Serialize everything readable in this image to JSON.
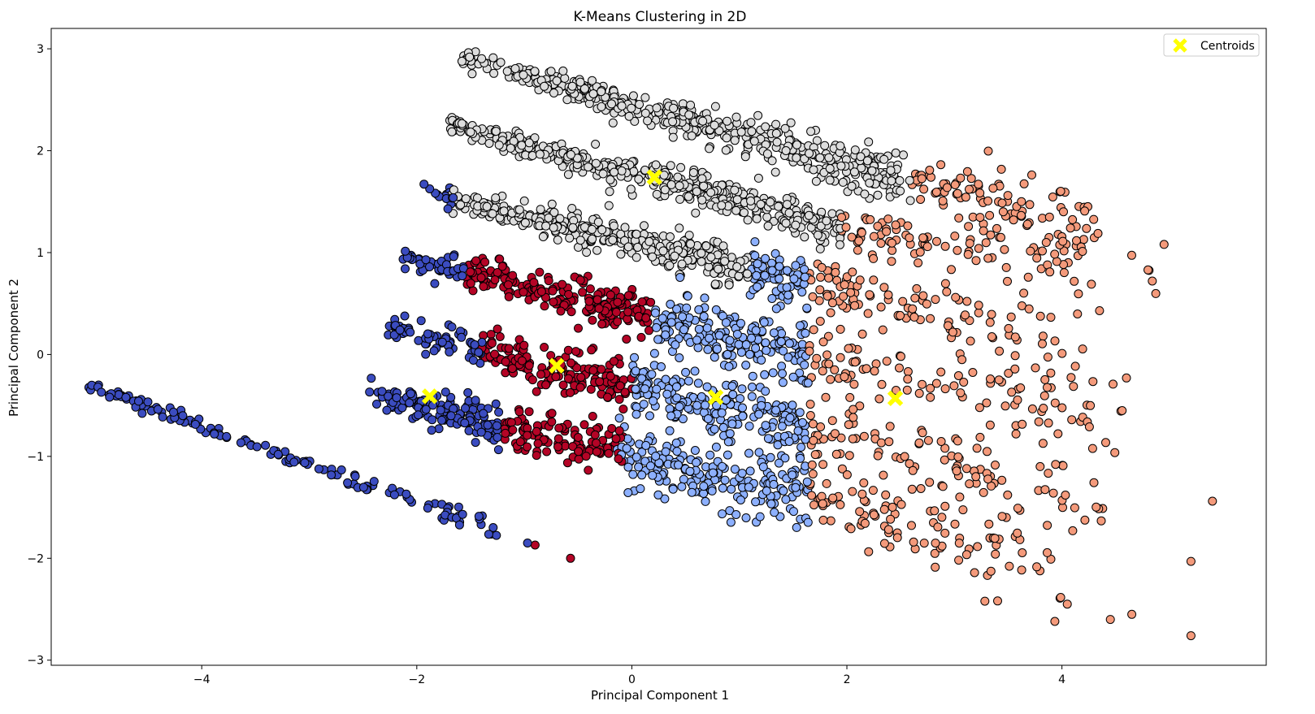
{
  "chart_data": {
    "type": "scatter",
    "title": "K-Means Clustering in 2D",
    "xlabel": "Principal Component 1",
    "ylabel": "Principal Component 2",
    "xlim": [
      -5.4,
      5.9
    ],
    "ylim": [
      -3.05,
      3.2
    ],
    "xticks": [
      {
        "value": -4,
        "label": "−4"
      },
      {
        "value": -2,
        "label": "−2"
      },
      {
        "value": 0,
        "label": "0"
      },
      {
        "value": 2,
        "label": "2"
      },
      {
        "value": 4,
        "label": "4"
      }
    ],
    "yticks": [
      {
        "value": 3,
        "label": "3"
      },
      {
        "value": 2,
        "label": "2"
      },
      {
        "value": 1,
        "label": "1"
      },
      {
        "value": 0,
        "label": "0"
      },
      {
        "value": -1,
        "label": "−1"
      },
      {
        "value": -2,
        "label": "−2"
      },
      {
        "value": -3,
        "label": "−3"
      }
    ],
    "grid": false,
    "legend": {
      "placement": "top-right",
      "entries": [
        {
          "label": "Centroids",
          "marker": "X",
          "color": "#ffff00"
        }
      ]
    },
    "clusters": [
      {
        "id": 0,
        "color": "#3b4cc0"
      },
      {
        "id": 1,
        "color": "#8db0fe"
      },
      {
        "id": 2,
        "color": "#dddddd"
      },
      {
        "id": 3,
        "color": "#f49a7b"
      },
      {
        "id": 4,
        "color": "#b40426"
      }
    ],
    "centroids": [
      {
        "x": -1.88,
        "y": -0.41
      },
      {
        "x": 0.78,
        "y": -0.42
      },
      {
        "x": 0.21,
        "y": 1.74
      },
      {
        "x": 2.45,
        "y": -0.43
      },
      {
        "x": -0.7,
        "y": -0.11
      }
    ],
    "bands": [
      {
        "x_start": -1.65,
        "y_start": 2.93,
        "x_end": 2.4,
        "y_end": 1.75,
        "tail_end_x": 4.3,
        "tail_end_y": 1.3,
        "spread": 0.045,
        "segments": [
          {
            "cluster": 2,
            "x0": -1.65,
            "x1": 2.6
          },
          {
            "cluster": 3,
            "x0": 2.6,
            "x1": 4.3
          }
        ]
      },
      {
        "x_start": -1.7,
        "y_start": 2.26,
        "x_end": 1.9,
        "y_end": 1.25,
        "tail_end_x": 4.9,
        "tail_end_y": 0.8,
        "spread": 0.04,
        "segments": [
          {
            "cluster": 2,
            "x0": -1.7,
            "x1": 1.95
          },
          {
            "cluster": 3,
            "x0": 1.95,
            "x1": 4.9
          }
        ]
      },
      {
        "x_start": -1.95,
        "y_start": 1.6,
        "x_end": 1.6,
        "y_end": 0.7,
        "tail_end_x": 4.2,
        "tail_end_y": 0.05,
        "spread": 0.045,
        "segments": [
          {
            "cluster": 0,
            "x0": -1.95,
            "x1": -1.7
          },
          {
            "cluster": 2,
            "x0": -1.7,
            "x1": 1.1
          },
          {
            "cluster": 1,
            "x0": 1.1,
            "x1": 1.65
          },
          {
            "cluster": 3,
            "x0": 1.65,
            "x1": 4.2
          }
        ]
      },
      {
        "x_start": -2.15,
        "y_start": 0.95,
        "x_end": 1.6,
        "y_end": 0.0,
        "tail_end_x": 4.6,
        "tail_end_y": -0.72,
        "spread": 0.06,
        "segments": [
          {
            "cluster": 0,
            "x0": -2.15,
            "x1": -1.55
          },
          {
            "cluster": 4,
            "x0": -1.55,
            "x1": 0.2
          },
          {
            "cluster": 1,
            "x0": 0.2,
            "x1": 1.65
          },
          {
            "cluster": 3,
            "x0": 1.65,
            "x1": 4.6
          }
        ]
      },
      {
        "x_start": -2.3,
        "y_start": 0.28,
        "x_end": 1.6,
        "y_end": -0.73,
        "tail_end_x": 4.45,
        "tail_end_y": -1.55,
        "spread": 0.065,
        "segments": [
          {
            "cluster": 0,
            "x0": -2.3,
            "x1": -1.4
          },
          {
            "cluster": 4,
            "x0": -1.4,
            "x1": 0.0
          },
          {
            "cluster": 1,
            "x0": 0.0,
            "x1": 1.65
          },
          {
            "cluster": 3,
            "x0": 1.65,
            "x1": 4.45
          }
        ]
      },
      {
        "x_start": -2.5,
        "y_start": -0.37,
        "x_end": 1.6,
        "y_end": -1.4,
        "tail_end_x": 4.1,
        "tail_end_y": -2.25,
        "spread": 0.07,
        "segments": [
          {
            "cluster": 0,
            "x0": -2.5,
            "x1": -1.2
          },
          {
            "cluster": 4,
            "x0": -1.2,
            "x1": -0.1
          },
          {
            "cluster": 1,
            "x0": -0.1,
            "x1": 1.65
          },
          {
            "cluster": 3,
            "x0": 1.65,
            "x1": 4.1
          }
        ]
      }
    ],
    "sparse_line": {
      "cluster": 0,
      "x_start": -5.05,
      "y_start": -0.31,
      "x_end": -1.2,
      "y_end": -1.75,
      "spread": 0.025
    },
    "outliers": [
      {
        "x": -0.9,
        "y": -1.87,
        "cluster": 4
      },
      {
        "x": -0.57,
        "y": -2.0,
        "cluster": 4
      },
      {
        "x": -1.45,
        "y": 0.92,
        "cluster": 4
      },
      {
        "x": -0.97,
        "y": -1.85,
        "cluster": 0
      },
      {
        "x": 4.95,
        "y": 1.08,
        "cluster": 3
      },
      {
        "x": 4.8,
        "y": 0.83,
        "cluster": 3
      },
      {
        "x": 4.35,
        "y": 0.43,
        "cluster": 3
      },
      {
        "x": 4.6,
        "y": -0.23,
        "cluster": 3
      },
      {
        "x": 5.4,
        "y": -1.44,
        "cluster": 3
      },
      {
        "x": 5.2,
        "y": -2.03,
        "cluster": 3
      },
      {
        "x": 5.2,
        "y": -2.76,
        "cluster": 3
      },
      {
        "x": 4.65,
        "y": -2.55,
        "cluster": 3
      },
      {
        "x": 4.45,
        "y": -2.6,
        "cluster": 3
      },
      {
        "x": 4.05,
        "y": -2.45,
        "cluster": 3
      },
      {
        "x": 4.1,
        "y": -1.73,
        "cluster": 3
      }
    ]
  }
}
